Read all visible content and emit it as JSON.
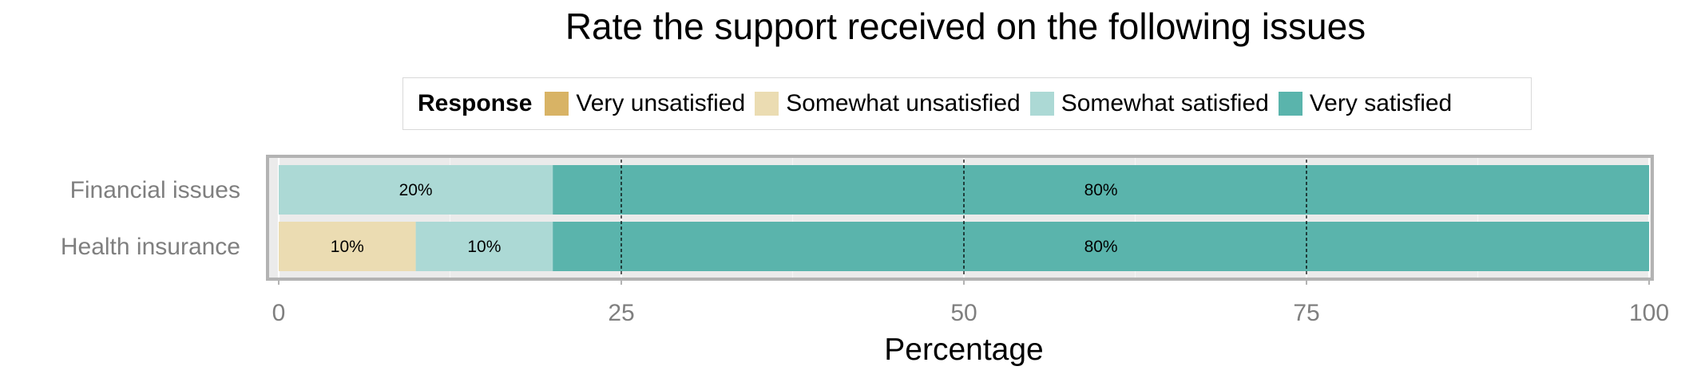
{
  "chart_data": {
    "type": "bar",
    "orientation": "horizontal",
    "stacked": true,
    "title": "Rate the support received on the following issues",
    "xlabel": "Percentage",
    "ylabel": "",
    "xlim": [
      0,
      100
    ],
    "xticks": [
      0,
      25,
      50,
      75,
      100
    ],
    "categories": [
      "Financial issues",
      "Health insurance"
    ],
    "legend": {
      "title": "Response",
      "placement": "top",
      "entries": [
        {
          "name": "Very unsatisfied",
          "color": "#d8b365"
        },
        {
          "name": "Somewhat unsatisfied",
          "color": "#ebdcb2"
        },
        {
          "name": "Somewhat satisfied",
          "color": "#acd9d5"
        },
        {
          "name": "Very satisfied",
          "color": "#5ab4ac"
        }
      ]
    },
    "series": [
      {
        "name": "Very unsatisfied",
        "color": "#d8b365",
        "values": [
          0,
          0
        ]
      },
      {
        "name": "Somewhat unsatisfied",
        "color": "#ebdcb2",
        "values": [
          0,
          10
        ]
      },
      {
        "name": "Somewhat satisfied",
        "color": "#acd9d5",
        "values": [
          20,
          10
        ]
      },
      {
        "name": "Very satisfied",
        "color": "#5ab4ac",
        "values": [
          80,
          80
        ]
      }
    ],
    "data_labels": [
      {
        "category": "Financial issues",
        "series": "Somewhat satisfied",
        "text": "20%"
      },
      {
        "category": "Financial issues",
        "series": "Very satisfied",
        "text": "80%"
      },
      {
        "category": "Health insurance",
        "series": "Somewhat unsatisfied",
        "text": "10%"
      },
      {
        "category": "Health insurance",
        "series": "Somewhat satisfied",
        "text": "10%"
      },
      {
        "category": "Health insurance",
        "series": "Very satisfied",
        "text": "80%"
      }
    ],
    "reference_lines": [
      25,
      50,
      75
    ],
    "grid": true
  }
}
